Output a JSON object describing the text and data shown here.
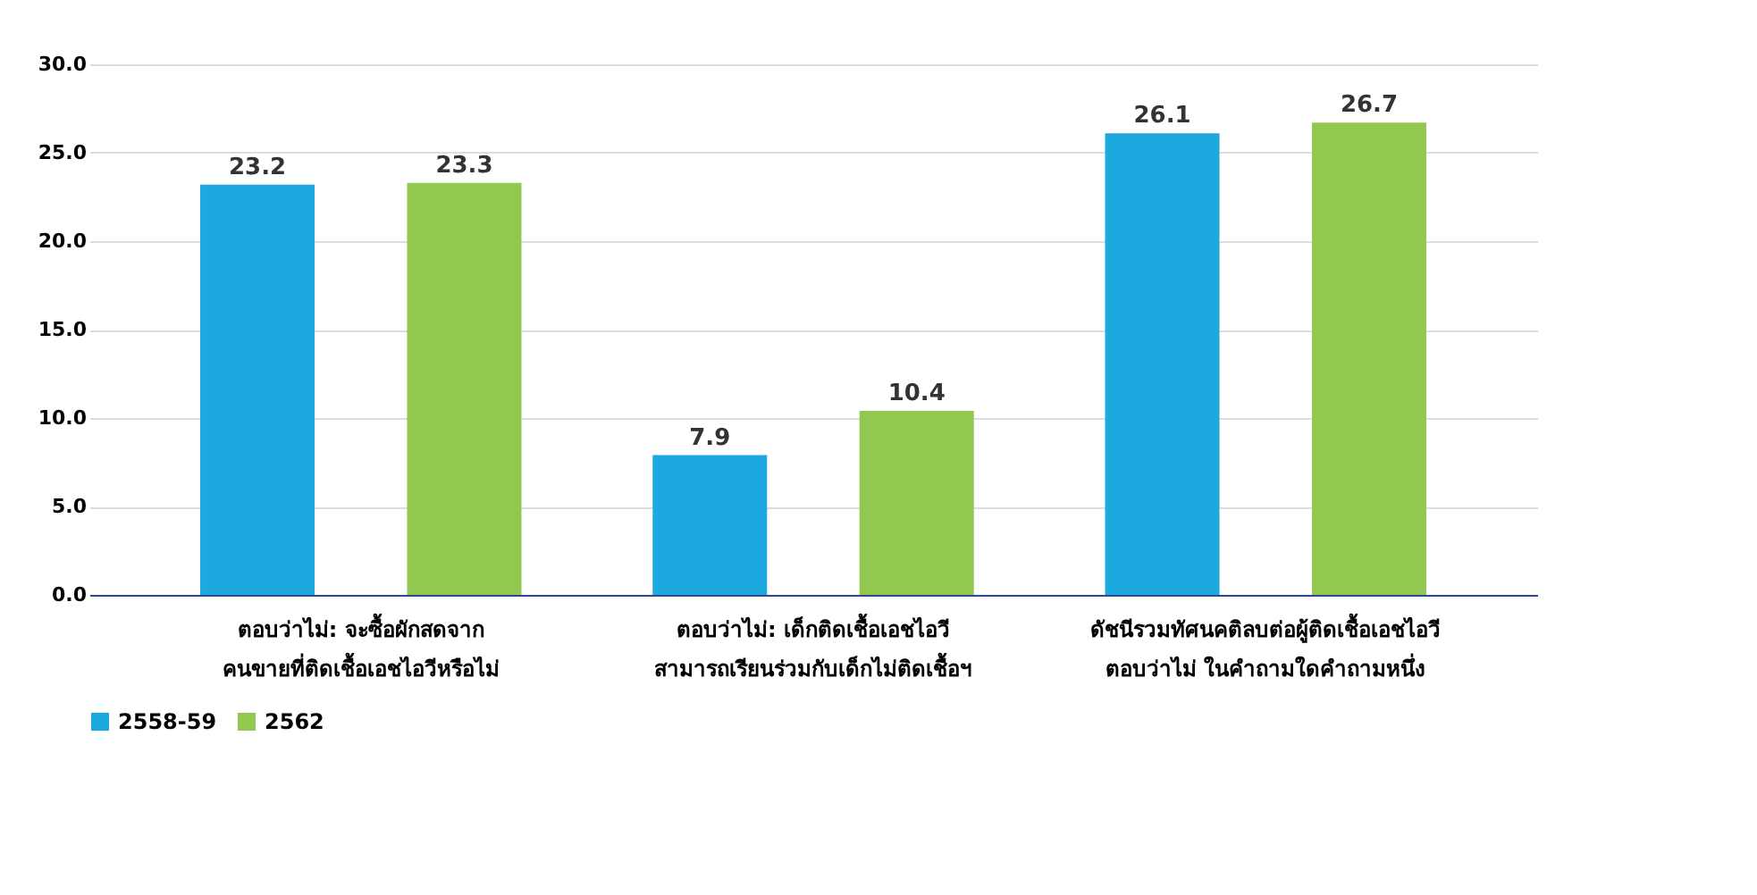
{
  "chart_data": {
    "type": "bar",
    "categories": [
      "ตอบว่าไม่: จะซื้อผักสดจาก\nคนขายที่ติดเชื้อเอชไอวีหรือไม่",
      "ตอบว่าไม่: เด็กติดเชื้อเอชไอวี\nสามารถเรียนร่วมกับเด็กไม่ติดเชื้อฯ",
      "ดัชนีรวมทัศนคติลบต่อผู้ติดเชื้อเอชไอวี\nตอบว่าไม่ ในคำถามใดคำถามหนึ่ง"
    ],
    "series": [
      {
        "name": "2558-59",
        "color": "#1ea8e0",
        "values": [
          23.2,
          7.9,
          26.1
        ]
      },
      {
        "name": "2562",
        "color": "#92c84f",
        "values": [
          23.3,
          10.4,
          26.7
        ]
      }
    ],
    "ylim": [
      0,
      30
    ],
    "yticks": [
      {
        "value": 0,
        "label": "0.0"
      },
      {
        "value": 5,
        "label": "5.0"
      },
      {
        "value": 10,
        "label": "10.0"
      },
      {
        "value": 15,
        "label": "15.0"
      },
      {
        "value": 20,
        "label": "20.0"
      },
      {
        "value": 25,
        "label": "25.0"
      },
      {
        "value": 30,
        "label": "30.0"
      }
    ],
    "grid": "y",
    "legend": "bottom",
    "data_labels": true
  }
}
